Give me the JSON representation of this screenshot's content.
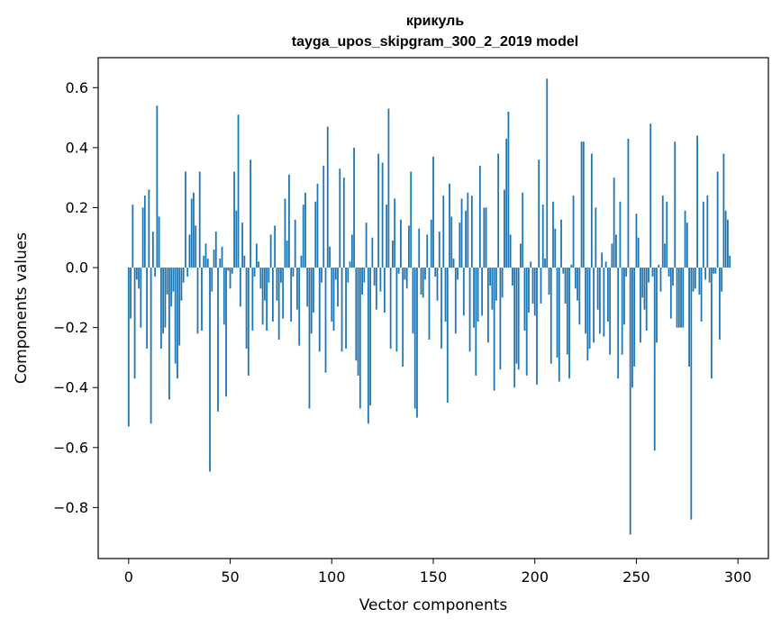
{
  "chart_data": {
    "type": "bar",
    "title": "крикуль",
    "subtitle": "tayga_upos_skipgram_300_2_2019 model",
    "xlabel": "Vector components",
    "ylabel": "Components values",
    "xlim": [
      -15,
      315
    ],
    "ylim": [
      -0.97,
      0.7
    ],
    "xticks": [
      0,
      50,
      100,
      150,
      200,
      250,
      300
    ],
    "yticks": [
      -0.8,
      -0.6,
      -0.4,
      -0.2,
      0.0,
      0.2,
      0.4,
      0.6
    ],
    "xtick_labels": [
      "0",
      "50",
      "100",
      "150",
      "200",
      "250",
      "300"
    ],
    "ytick_labels": [
      "−0.8",
      "−0.6",
      "−0.4",
      "−0.2",
      "0.0",
      "0.2",
      "0.4",
      "0.6"
    ],
    "bar_color": "#1f77b4",
    "grid": false,
    "values": [
      -0.53,
      -0.17,
      0.21,
      -0.37,
      -0.04,
      -0.07,
      -0.2,
      0.2,
      0.24,
      -0.27,
      0.26,
      -0.52,
      0.12,
      -0.03,
      0.54,
      0.17,
      -0.27,
      -0.22,
      -0.2,
      -0.09,
      -0.44,
      -0.13,
      -0.08,
      -0.32,
      -0.37,
      -0.26,
      -0.11,
      -0.05,
      0.32,
      -0.03,
      0.11,
      0.23,
      0.25,
      0.14,
      -0.22,
      0.32,
      -0.21,
      0.04,
      0.08,
      0.03,
      -0.68,
      -0.08,
      0.06,
      0.12,
      -0.48,
      0.03,
      0.07,
      -0.19,
      -0.43,
      -0.01,
      -0.07,
      -0.02,
      0.32,
      0.19,
      0.51,
      -0.13,
      0.15,
      0.04,
      -0.27,
      -0.36,
      0.36,
      -0.21,
      -0.03,
      0.08,
      0.02,
      -0.07,
      -0.19,
      -0.11,
      -0.21,
      -0.05,
      0.11,
      -0.18,
      0.14,
      -0.11,
      -0.24,
      -0.05,
      -0.17,
      0.23,
      0.09,
      0.31,
      -0.18,
      -0.03,
      0.16,
      -0.14,
      -0.26,
      0.04,
      0.21,
      0.25,
      -0.13,
      -0.47,
      -0.22,
      -0.15,
      0.22,
      0.28,
      -0.28,
      -0.05,
      0.34,
      -0.35,
      0.47,
      0.07,
      -0.18,
      -0.21,
      -0.04,
      -0.13,
      0.33,
      -0.28,
      0.3,
      -0.27,
      -0.05,
      0.02,
      0.11,
      0.4,
      -0.31,
      -0.36,
      -0.47,
      -0.09,
      -0.05,
      0.15,
      -0.52,
      -0.46,
      0.1,
      -0.06,
      -0.14,
      0.38,
      -0.08,
      0.35,
      -0.15,
      0.21,
      0.53,
      -0.27,
      0.09,
      0.23,
      -0.28,
      -0.02,
      0.16,
      -0.33,
      -0.04,
      -0.07,
      0.14,
      0.32,
      -0.22,
      -0.47,
      -0.5,
      0.13,
      -0.09,
      -0.1,
      -0.04,
      0.11,
      -0.24,
      0.16,
      0.37,
      -0.03,
      -0.11,
      0.12,
      -0.27,
      0.24,
      -0.18,
      -0.45,
      0.28,
      0.17,
      0.03,
      -0.22,
      -0.04,
      0.15,
      0.23,
      -0.16,
      0.19,
      0.25,
      -0.28,
      0.24,
      -0.2,
      -0.36,
      -0.18,
      0.34,
      -0.16,
      0.2,
      0.2,
      -0.25,
      -0.06,
      -0.14,
      -0.41,
      -0.11,
      0.38,
      -0.34,
      -0.1,
      0.26,
      0.43,
      0.52,
      0.11,
      -0.06,
      -0.4,
      -0.32,
      -0.34,
      0.08,
      0.25,
      -0.21,
      -0.36,
      -0.15,
      0.02,
      -0.12,
      -0.16,
      -0.39,
      0.36,
      -0.12,
      0.21,
      0.03,
      0.63,
      -0.09,
      -0.32,
      0.22,
      0.13,
      -0.3,
      -0.38,
      0.16,
      -0.02,
      -0.12,
      -0.29,
      -0.37,
      0.01,
      0.24,
      -0.07,
      -0.11,
      -0.19,
      0.42,
      0.42,
      -0.22,
      -0.31,
      -0.27,
      0.38,
      -0.25,
      0.2,
      -0.14,
      -0.22,
      0.05,
      -0.23,
      0.02,
      -0.18,
      -0.29,
      0.08,
      0.3,
      0.11,
      -0.37,
      0.22,
      -0.29,
      -0.19,
      -0.03,
      0.43,
      -0.89,
      -0.4,
      -0.33,
      0.18,
      0.1,
      -0.25,
      -0.1,
      -0.14,
      -0.21,
      -0.05,
      0.48,
      -0.03,
      -0.61,
      -0.25,
      0.01,
      -0.08,
      0.24,
      0.08,
      0.22,
      -0.03,
      -0.17,
      -0.06,
      0.42,
      -0.2,
      -0.2,
      -0.2,
      -0.2,
      0.19,
      0.15,
      -0.33,
      -0.84,
      -0.08,
      -0.07,
      0.44,
      -0.09,
      -0.18,
      0.22,
      -0.04,
      0.24,
      -0.05,
      -0.37,
      -0.02,
      -0.02,
      0.32,
      -0.24,
      -0.08,
      0.38,
      0.19,
      0.16,
      0.04,
      0.0,
      0.0
    ]
  }
}
